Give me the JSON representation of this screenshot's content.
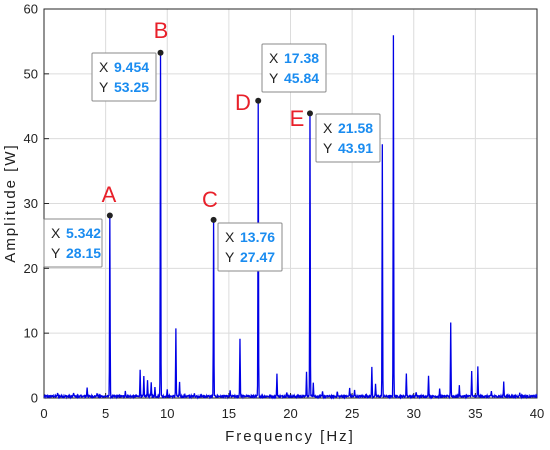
{
  "chart_data": {
    "type": "line",
    "xlabel": "Frequency [Hz]",
    "ylabel": "Amplitude [W]",
    "xlim": [
      0,
      40
    ],
    "ylim": [
      0,
      60
    ],
    "x_ticks": [
      0,
      5,
      10,
      15,
      20,
      25,
      30,
      35,
      40
    ],
    "y_ticks": [
      0,
      10,
      20,
      30,
      40,
      50,
      60
    ],
    "grid": true,
    "line_color": "#0000e6",
    "marker_label_color": "#e8202a",
    "datatip_value_color": "#1a8cf0",
    "peaks": [
      {
        "x": 1.1,
        "y": 0.5
      },
      {
        "x": 2.4,
        "y": 0.6
      },
      {
        "x": 3.5,
        "y": 1.4
      },
      {
        "x": 4.3,
        "y": 0.5
      },
      {
        "x": 5.342,
        "y": 28.15
      },
      {
        "x": 6.6,
        "y": 0.9
      },
      {
        "x": 7.8,
        "y": 4.0
      },
      {
        "x": 8.1,
        "y": 3.0
      },
      {
        "x": 8.4,
        "y": 2.6
      },
      {
        "x": 8.7,
        "y": 2.2
      },
      {
        "x": 9.0,
        "y": 1.4
      },
      {
        "x": 9.454,
        "y": 53.25
      },
      {
        "x": 10.0,
        "y": 1.0
      },
      {
        "x": 10.7,
        "y": 10.4
      },
      {
        "x": 11.0,
        "y": 2.1
      },
      {
        "x": 12.2,
        "y": 0.6
      },
      {
        "x": 13.76,
        "y": 27.47
      },
      {
        "x": 15.1,
        "y": 0.8
      },
      {
        "x": 15.9,
        "y": 9.0
      },
      {
        "x": 17.38,
        "y": 45.84
      },
      {
        "x": 18.9,
        "y": 3.5
      },
      {
        "x": 19.7,
        "y": 0.6
      },
      {
        "x": 21.3,
        "y": 3.8
      },
      {
        "x": 21.58,
        "y": 43.91
      },
      {
        "x": 21.85,
        "y": 2.2
      },
      {
        "x": 22.6,
        "y": 0.7
      },
      {
        "x": 23.8,
        "y": 0.8
      },
      {
        "x": 24.8,
        "y": 1.3
      },
      {
        "x": 25.2,
        "y": 0.9
      },
      {
        "x": 26.6,
        "y": 4.6
      },
      {
        "x": 26.9,
        "y": 1.8
      },
      {
        "x": 27.45,
        "y": 38.8
      },
      {
        "x": 28.35,
        "y": 55.8
      },
      {
        "x": 29.4,
        "y": 3.6
      },
      {
        "x": 30.2,
        "y": 0.7
      },
      {
        "x": 31.2,
        "y": 3.3
      },
      {
        "x": 32.1,
        "y": 1.1
      },
      {
        "x": 33.0,
        "y": 11.4
      },
      {
        "x": 33.7,
        "y": 1.6
      },
      {
        "x": 34.7,
        "y": 4.0
      },
      {
        "x": 35.2,
        "y": 4.5
      },
      {
        "x": 36.3,
        "y": 0.8
      },
      {
        "x": 37.3,
        "y": 2.2
      },
      {
        "x": 38.6,
        "y": 0.6
      }
    ],
    "annotations": [
      {
        "label": "A",
        "x": 5.342,
        "y": 28.15,
        "x_text": "5.342",
        "y_text": "28.15"
      },
      {
        "label": "B",
        "x": 9.454,
        "y": 53.25,
        "x_text": "9.454",
        "y_text": "53.25"
      },
      {
        "label": "C",
        "x": 13.76,
        "y": 27.47,
        "x_text": "13.76",
        "y_text": "27.47"
      },
      {
        "label": "D",
        "x": 17.38,
        "y": 45.84,
        "x_text": "17.38",
        "y_text": "45.84"
      },
      {
        "label": "E",
        "x": 21.58,
        "y": 43.91,
        "x_text": "21.58",
        "y_text": "43.91"
      }
    ],
    "datatip_keys": {
      "x": "X",
      "y": "Y"
    }
  }
}
